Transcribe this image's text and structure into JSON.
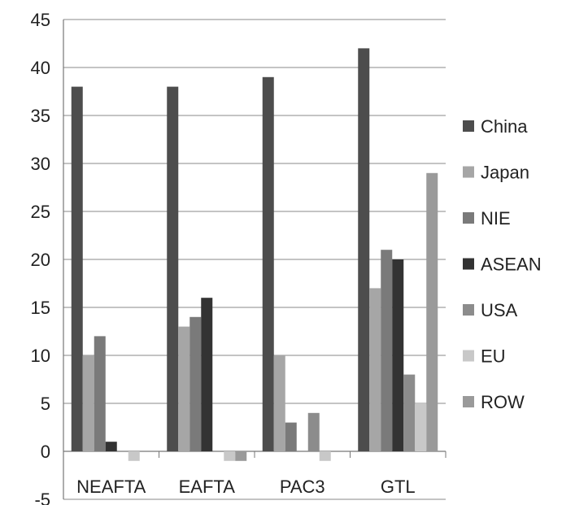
{
  "chart_data": {
    "type": "bar",
    "title": "",
    "xlabel": "",
    "ylabel": "",
    "categories": [
      "NEAFTA",
      "EAFTA",
      "PAC3",
      "GTL"
    ],
    "ylim": [
      -5,
      45
    ],
    "yticks": [
      -5,
      0,
      5,
      10,
      15,
      20,
      25,
      30,
      35,
      40,
      45
    ],
    "grid": true,
    "legend_position": "right",
    "series": [
      {
        "name": "China",
        "color": "#4d4d4d",
        "values": [
          38,
          38,
          39,
          42
        ]
      },
      {
        "name": "Japan",
        "color": "#a6a6a6",
        "values": [
          10,
          13,
          10,
          17
        ]
      },
      {
        "name": "NIE",
        "color": "#7a7a7a",
        "values": [
          12,
          14,
          3,
          21
        ]
      },
      {
        "name": "ASEAN",
        "color": "#333333",
        "values": [
          1,
          16,
          0,
          20
        ]
      },
      {
        "name": "USA",
        "color": "#8c8c8c",
        "values": [
          0,
          0,
          4,
          8
        ]
      },
      {
        "name": "EU",
        "color": "#c8c8c8",
        "values": [
          -1,
          -1,
          -1,
          5
        ]
      },
      {
        "name": "ROW",
        "color": "#9a9a9a",
        "values": [
          0,
          -1,
          0,
          29
        ]
      }
    ]
  }
}
